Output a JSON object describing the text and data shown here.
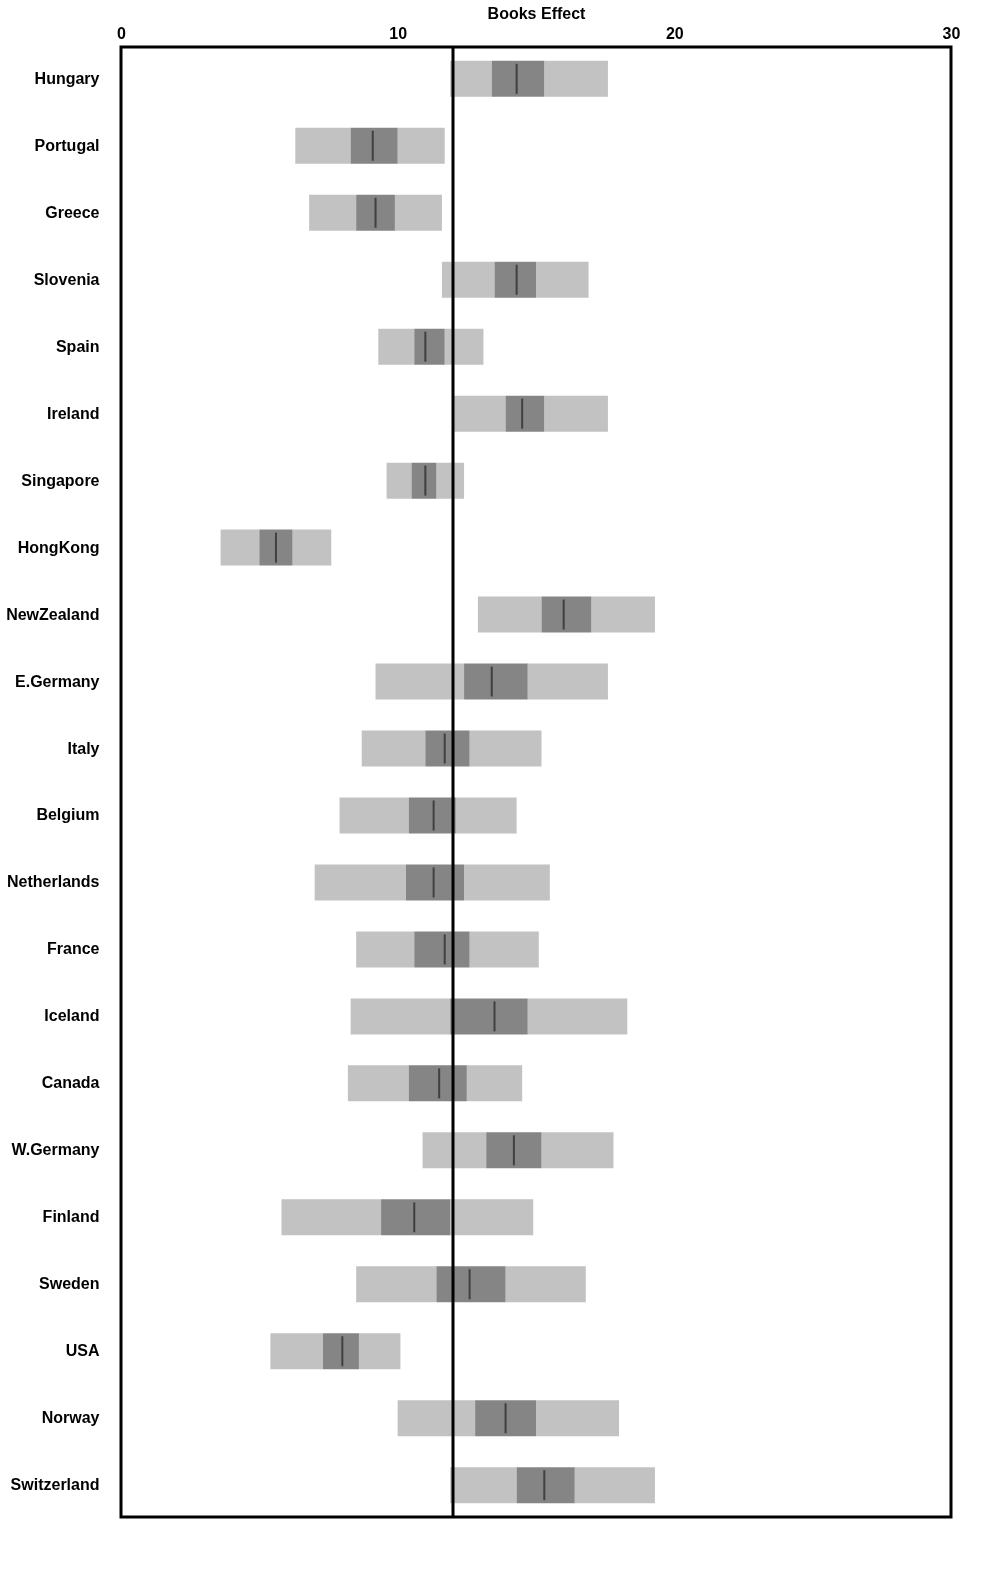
{
  "chart_data": {
    "type": "box",
    "orientation": "horizontal",
    "xlabel": "Books Effect",
    "xlim": [
      0,
      30
    ],
    "xticks": [
      0,
      10,
      20,
      30
    ],
    "grid": false,
    "categories": [
      "Hungary",
      "Portugal",
      "Greece",
      "Slovenia",
      "Spain",
      "Ireland",
      "Singapore",
      "HongKong",
      "NewZealand",
      "E.Germany",
      "Italy",
      "Belgium",
      "Netherlands",
      "France",
      "Iceland",
      "Canada",
      "W.Germany",
      "Finland",
      "Sweden",
      "USA",
      "Norway",
      "Switzerland"
    ],
    "ref_lines": [
      {
        "axis": "x",
        "value": 12.0,
        "color": "#000000"
      }
    ],
    "series": [
      {
        "color": "#858585",
        "boxes": [
          {
            "low": 11.9,
            "q1": 13.4,
            "median": 14.3,
            "q3": 15.3,
            "high": 17.6
          },
          {
            "low": 6.3,
            "q1": 8.3,
            "median": 9.1,
            "q3": 10.0,
            "high": 11.7
          },
          {
            "low": 6.8,
            "q1": 8.5,
            "median": 9.2,
            "q3": 9.9,
            "high": 11.6
          },
          {
            "low": 11.6,
            "q1": 13.5,
            "median": 14.3,
            "q3": 15.0,
            "high": 16.9
          },
          {
            "low": 9.3,
            "q1": 10.6,
            "median": 11.0,
            "q3": 11.7,
            "high": 13.1
          },
          {
            "low": 12.0,
            "q1": 13.9,
            "median": 14.5,
            "q3": 15.3,
            "high": 17.6
          },
          {
            "low": 9.6,
            "q1": 10.5,
            "median": 11.0,
            "q3": 11.4,
            "high": 12.4
          },
          {
            "low": 3.6,
            "q1": 5.0,
            "median": 5.6,
            "q3": 6.2,
            "high": 7.6
          },
          {
            "low": 12.9,
            "q1": 15.2,
            "median": 16.0,
            "q3": 17.0,
            "high": 19.3
          },
          {
            "low": 9.2,
            "q1": 12.4,
            "median": 13.4,
            "q3": 14.7,
            "high": 17.6
          },
          {
            "low": 8.7,
            "q1": 11.0,
            "median": 11.7,
            "q3": 12.6,
            "high": 15.2
          },
          {
            "low": 7.9,
            "q1": 10.4,
            "median": 11.3,
            "q3": 12.1,
            "high": 14.3
          },
          {
            "low": 7.0,
            "q1": 10.3,
            "median": 11.3,
            "q3": 12.4,
            "high": 15.5
          },
          {
            "low": 8.5,
            "q1": 10.6,
            "median": 11.7,
            "q3": 12.6,
            "high": 15.1
          },
          {
            "low": 8.3,
            "q1": 11.9,
            "median": 13.5,
            "q3": 14.7,
            "high": 18.3
          },
          {
            "low": 8.2,
            "q1": 10.4,
            "median": 11.5,
            "q3": 12.5,
            "high": 14.5
          },
          {
            "low": 10.9,
            "q1": 13.2,
            "median": 14.2,
            "q3": 15.2,
            "high": 17.8
          },
          {
            "low": 5.8,
            "q1": 9.4,
            "median": 10.6,
            "q3": 11.9,
            "high": 14.9
          },
          {
            "low": 8.5,
            "q1": 11.4,
            "median": 12.6,
            "q3": 13.9,
            "high": 16.8
          },
          {
            "low": 5.4,
            "q1": 7.3,
            "median": 8.0,
            "q3": 8.6,
            "high": 10.1
          },
          {
            "low": 10.0,
            "q1": 12.8,
            "median": 13.9,
            "q3": 15.0,
            "high": 18.0
          },
          {
            "low": 11.9,
            "q1": 14.3,
            "median": 15.3,
            "q3": 16.4,
            "high": 19.3
          }
        ]
      }
    ]
  }
}
